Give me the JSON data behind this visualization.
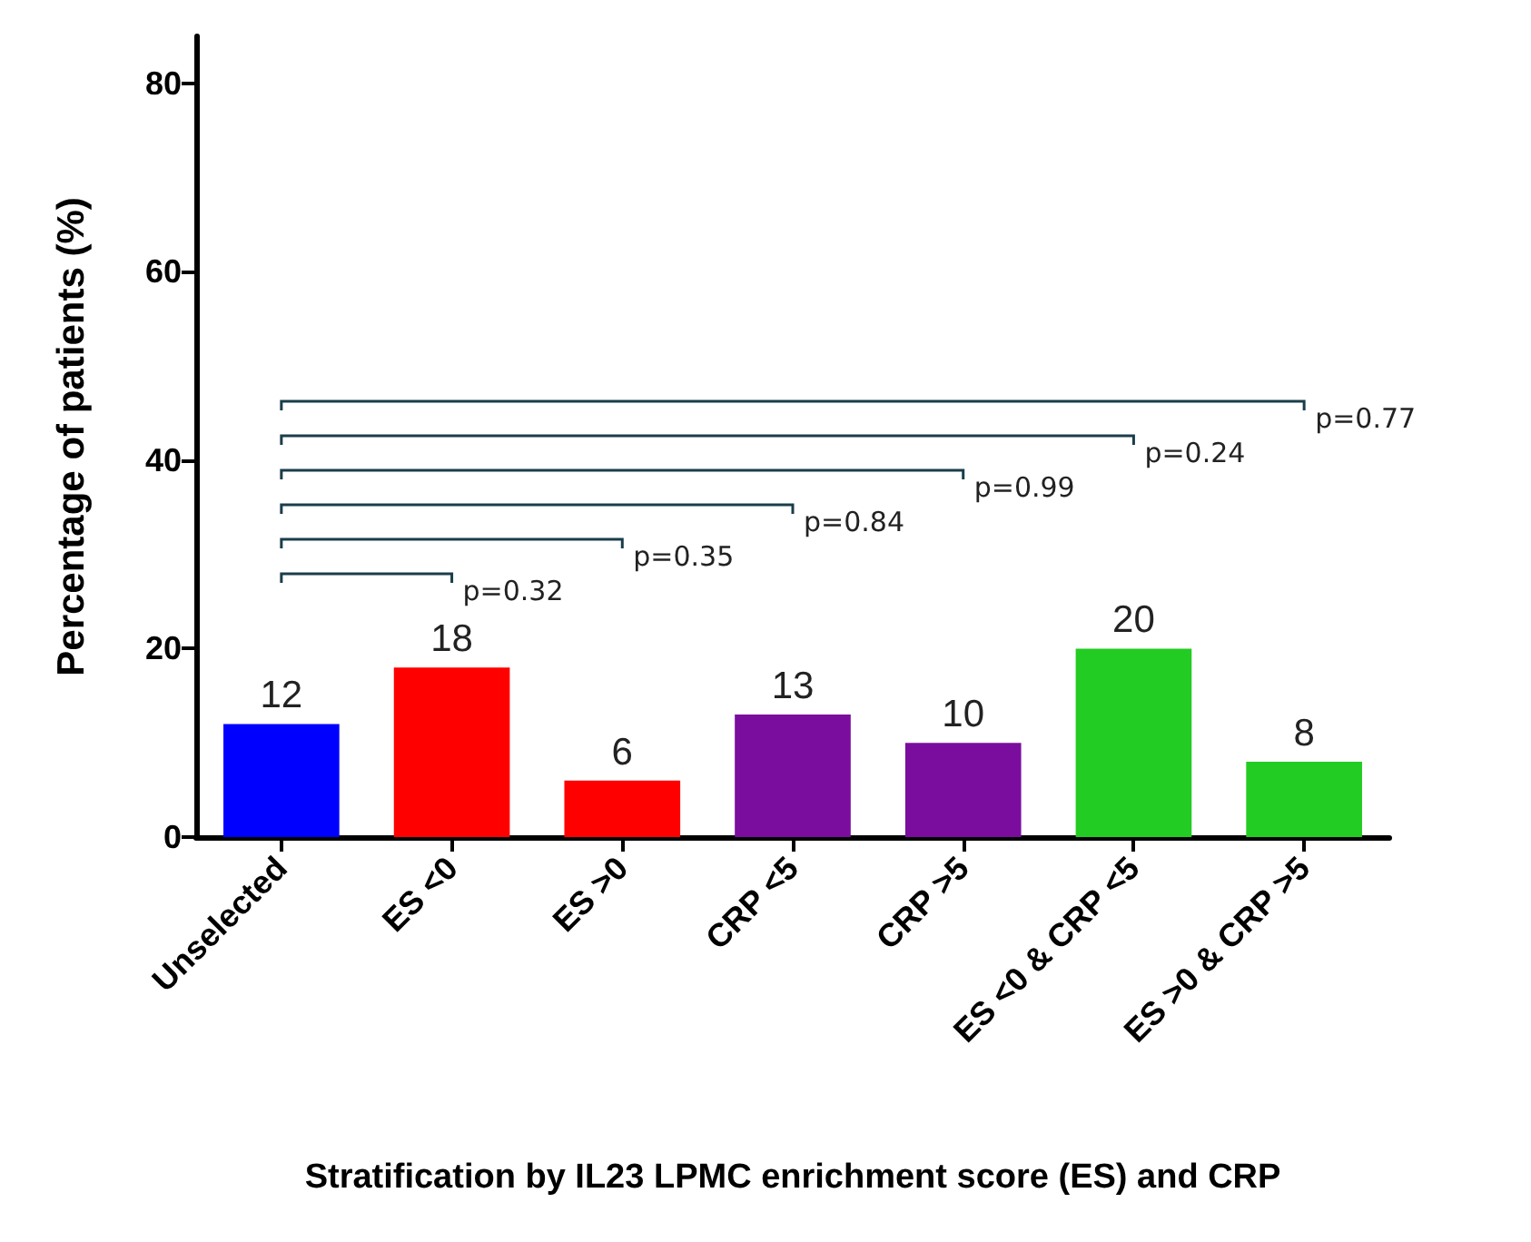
{
  "chart_data": {
    "type": "bar",
    "xlabel": "Stratification by IL23 LPMC enrichment score (ES) and CRP",
    "ylabel": "Percentage of patients (%)",
    "categories": [
      "Unselected",
      "ES <0",
      "ES >0",
      "CRP <5",
      "CRP >5",
      "ES <0 & CRP <5",
      "ES >0 & CRP >5"
    ],
    "values": [
      12,
      18,
      6,
      13,
      10,
      20,
      8
    ],
    "colors": [
      "#0000ff",
      "#ff0000",
      "#ff0000",
      "#7b0d9e",
      "#7b0d9e",
      "#22cc22",
      "#22cc22"
    ],
    "ylim": [
      0,
      85
    ],
    "yticks": [
      0,
      20,
      40,
      60,
      80
    ],
    "data_labels": true,
    "grid": false,
    "annotations": [
      "p=0.32",
      "p=0.35",
      "p=0.84",
      "p=0.99",
      "p=0.24",
      "p=0.77"
    ]
  }
}
